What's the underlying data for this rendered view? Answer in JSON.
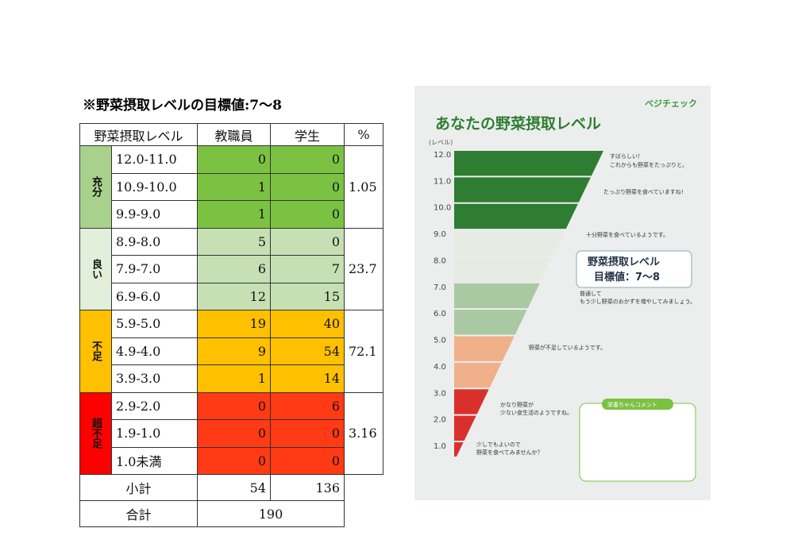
{
  "document": {
    "title": "※野菜摂取レベルの目標値:7～8",
    "table": {
      "header": [
        "野菜摂取レベル",
        "教職員",
        "学生",
        "%"
      ],
      "groups": [
        {
          "label": "充分",
          "percent": "1.05",
          "rows": [
            [
              "12.0-11.0",
              "0",
              "0"
            ],
            [
              "10.9-10.0",
              "1",
              "0"
            ],
            [
              "9.9-9.0",
              "1",
              "0"
            ]
          ]
        },
        {
          "label": "良い",
          "percent": "23.7",
          "rows": [
            [
              "8.9-8.0",
              "5",
              "0"
            ],
            [
              "7.9-7.0",
              "6",
              "7"
            ],
            [
              "6.9-6.0",
              "12",
              "15"
            ]
          ]
        },
        {
          "label": "不足",
          "percent": "72.1",
          "rows": [
            [
              "5.9-5.0",
              "19",
              "40"
            ],
            [
              "4.9-4.0",
              "9",
              "54"
            ],
            [
              "3.9-3.0",
              "1",
              "14"
            ]
          ]
        },
        {
          "label": "超不足",
          "percent": "3.16",
          "rows": [
            [
              "2.9-2.0",
              "0",
              "6"
            ],
            [
              "1.9-1.0",
              "0",
              "0"
            ],
            [
              "1.0未満",
              "0",
              "0"
            ]
          ]
        }
      ],
      "subtotal": {
        "label": "小計",
        "values": [
          "54",
          "136"
        ]
      },
      "total": {
        "label": "合計",
        "value": "190"
      }
    },
    "poster": {
      "brand": "ベジチェック",
      "title": "あなたの野菜摂取レベル",
      "axis_label": "(レベル)",
      "levels": [
        "12.0",
        "11.0",
        "10.0",
        "9.0",
        "8.0",
        "7.0",
        "6.0",
        "5.0",
        "4.0",
        "3.0",
        "2.0",
        "1.0"
      ],
      "notes": [
        "すばらしい！",
        "これからも野菜をたっぷりと。",
        "たっぷり野菜を食べていますね！",
        "十分野菜を食べているようです。",
        "普通して",
        "もう少し野菜のおかずを増やしてみましょう。",
        "野菜が不足しているようです。",
        "かなり野菜が",
        "少ない食生活のようですね。",
        "少しでもよいので",
        "野菜を食べてみませんか？"
      ],
      "target": [
        "野菜摂取レベル",
        "目標値：7～8"
      ],
      "comment_title": "栄養ちゃんコメント"
    }
  }
}
